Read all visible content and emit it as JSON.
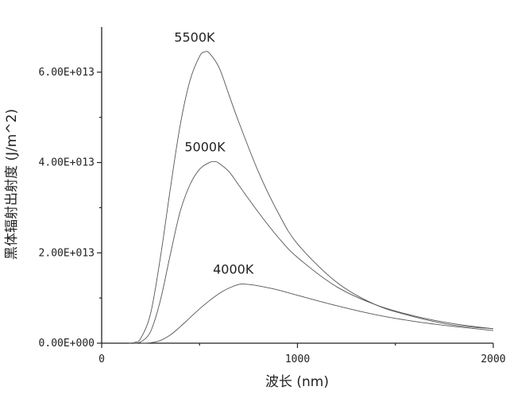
{
  "chart_data": {
    "type": "line",
    "title": "",
    "xlabel": "波长 (nm)",
    "ylabel": "黑体辐射出射度 (J/m^2)",
    "xlim": [
      0,
      2000
    ],
    "ylim": [
      0,
      70000000000000.0
    ],
    "x_ticks": [
      {
        "value": 0,
        "label": "0"
      },
      {
        "value": 1000,
        "label": "1000"
      },
      {
        "value": 2000,
        "label": "2000"
      }
    ],
    "y_ticks": [
      {
        "value": 0,
        "label": "0.00E+000"
      },
      {
        "value": 20000000000000.0,
        "label": "2.00E+013"
      },
      {
        "value": 40000000000000.0,
        "label": "4.00E+013"
      },
      {
        "value": 60000000000000.0,
        "label": "6.00E+013"
      }
    ],
    "grid": false,
    "line_color": "#555555",
    "series": [
      {
        "name": "5500K",
        "x": [
          140,
          170,
          200,
          250,
          300,
          350,
          400,
          450,
          500,
          527,
          550,
          600,
          650,
          700,
          800,
          900,
          1000,
          1200,
          1400,
          1600,
          1800,
          2000
        ],
        "y": [
          0,
          200000000000.0,
          1100000000000.0,
          6600000000000.0,
          19000000000000.0,
          34000000000000.0,
          48000000000000.0,
          58000000000000.0,
          63500000000000.0,
          64500000000000.0,
          64200000000000.0,
          61000000000000.0,
          55000000000000.0,
          49000000000000.0,
          38000000000000.0,
          29000000000000.0,
          22000000000000.0,
          13500000000000.0,
          8500000000000.0,
          5800000000000.0,
          4000000000000.0,
          3200000000000.0
        ]
      },
      {
        "name": "5000K",
        "x": [
          160,
          200,
          250,
          300,
          350,
          400,
          450,
          500,
          550,
          580,
          600,
          650,
          700,
          800,
          900,
          1000,
          1200,
          1400,
          1600,
          1800,
          2000
        ],
        "y": [
          0,
          300000000000.0,
          2600000000000.0,
          9500000000000.0,
          19500000000000.0,
          29000000000000.0,
          35000000000000.0,
          38500000000000.0,
          40000000000000.0,
          40200000000000.0,
          39800000000000.0,
          38000000000000.0,
          35000000000000.0,
          29000000000000.0,
          23500000000000.0,
          19000000000000.0,
          12500000000000.0,
          8500000000000.0,
          6000000000000.0,
          4300000000000.0,
          3200000000000.0
        ]
      },
      {
        "name": "4000K",
        "x": [
          200,
          250,
          300,
          350,
          400,
          450,
          500,
          550,
          600,
          650,
          700,
          725,
          750,
          800,
          900,
          1000,
          1200,
          1400,
          1600,
          1800,
          2000
        ],
        "y": [
          0,
          100000000000.0,
          600000000000.0,
          1800000000000.0,
          3600000000000.0,
          5600000000000.0,
          7600000000000.0,
          9400000000000.0,
          11000000000000.0,
          12200000000000.0,
          13000000000000.0,
          13100000000000.0,
          13000000000000.0,
          12700000000000.0,
          11800000000000.0,
          10600000000000.0,
          8300000000000.0,
          6300000000000.0,
          4800000000000.0,
          3700000000000.0,
          2800000000000.0
        ]
      }
    ]
  }
}
